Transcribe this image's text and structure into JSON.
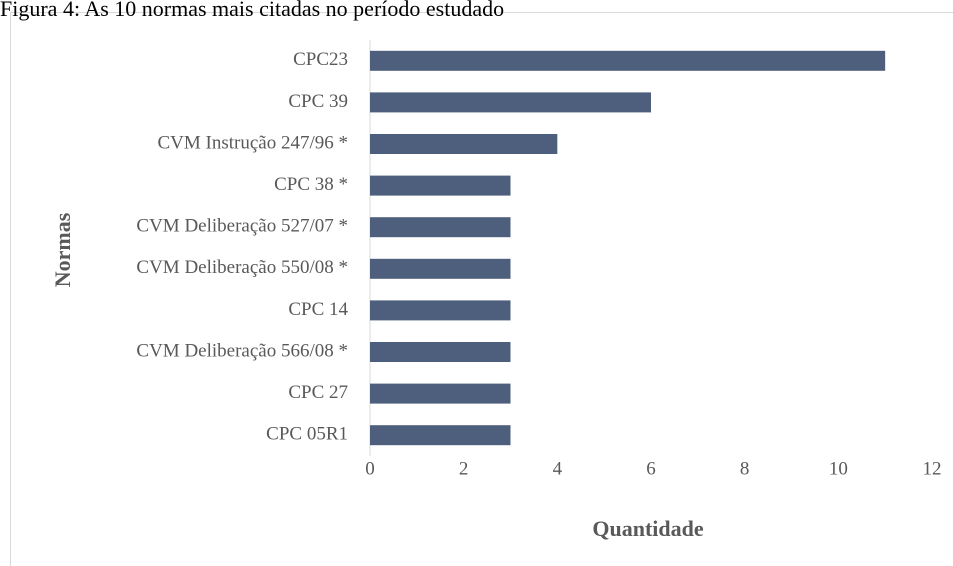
{
  "chart_data": {
    "type": "bar",
    "orientation": "horizontal",
    "title": "Figura 4: As 10 normas mais citadas no período estudado",
    "xlabel": "Quantidade",
    "ylabel": "Normas",
    "categories": [
      "CPC23",
      "CPC 39",
      "CVM Instrução 247/96 *",
      "CPC 38 *",
      "CVM Deliberação 527/07 *",
      "CVM Deliberação 550/08 *",
      "CPC 14",
      "CVM Deliberação 566/08 *",
      "CPC 27",
      "CPC 05R1"
    ],
    "values": [
      11,
      6,
      4,
      3,
      3,
      3,
      3,
      3,
      3,
      3
    ],
    "color": "#4e5f7d",
    "xlim": [
      0,
      12
    ],
    "xticks": [
      0,
      2,
      4,
      6,
      8,
      10,
      12
    ],
    "grid": false
  }
}
